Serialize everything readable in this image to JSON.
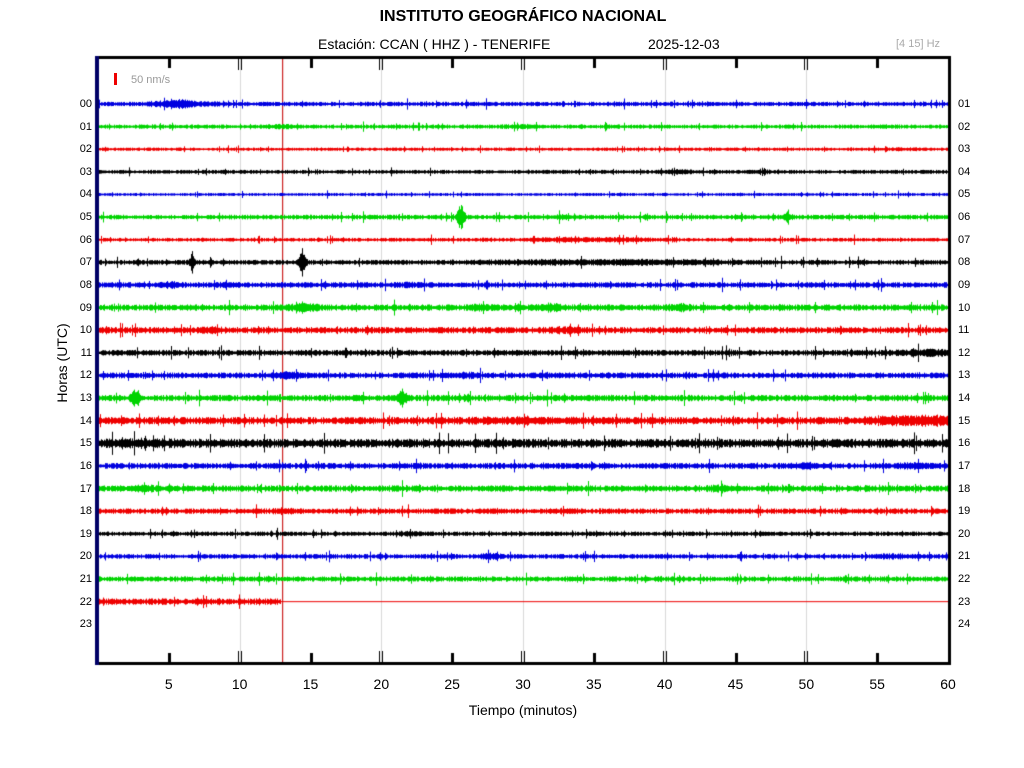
{
  "header": {
    "title": "INSTITUTO GEOGRÁFICO NACIONAL",
    "station_label": "Estación:  CCAN ( HHZ ) - TENERIFE",
    "date": "2025-12-03",
    "filter": "[4 15] Hz"
  },
  "scale": {
    "label": "50 nm/s"
  },
  "axes": {
    "x_title": "Tiempo (minutos)",
    "y_title": "Horas (UTC)"
  },
  "chart_data": {
    "type": "line",
    "subtype": "helicorder-seismogram",
    "title": "INSTITUTO GEOGRÁFICO NACIONAL",
    "subtitle": "Estación:  CCAN ( HHZ ) - TENERIFE  2025-12-03",
    "xlabel": "Tiempo (minutos)",
    "ylabel": "Horas (UTC)",
    "xlim": [
      0,
      60
    ],
    "x_tick_values": [
      5,
      10,
      15,
      20,
      25,
      30,
      35,
      40,
      45,
      50,
      55,
      60
    ],
    "x_tick_labels": [
      "5",
      "10",
      "15",
      "20",
      "25",
      "30",
      "35",
      "40",
      "45",
      "50",
      "55",
      "60"
    ],
    "grid_minutes": [
      10,
      20,
      30,
      40,
      50
    ],
    "grid_on": true,
    "left_hour_labels": [
      "00",
      "01",
      "02",
      "03",
      "04",
      "05",
      "06",
      "07",
      "08",
      "09",
      "10",
      "11",
      "12",
      "13",
      "14",
      "15",
      "16",
      "17",
      "18",
      "19",
      "20",
      "21",
      "22",
      "23"
    ],
    "right_hour_labels": [
      "01",
      "02",
      "03",
      "04",
      "05",
      "06",
      "07",
      "08",
      "09",
      "10",
      "11",
      "12",
      "13",
      "14",
      "15",
      "16",
      "17",
      "18",
      "19",
      "20",
      "21",
      "22",
      "23",
      "24"
    ],
    "amplitude_scale_nm_s": 50,
    "filter_band_hz": "[4 15]",
    "cursor_minute": 13,
    "colors": {
      "blue": "#0000e0",
      "green": "#00d400",
      "red": "#ee0000",
      "black": "#000000",
      "left_border": "#000066",
      "frame": "#000000",
      "grid": "#d8d8d8",
      "cursor": "#cc2222",
      "muted_text": "#999999"
    },
    "rows": [
      {
        "hour": "00",
        "color": "blue",
        "amp": 1.9,
        "end": 60,
        "events": [
          {
            "t": 5.9,
            "a": 3.0,
            "w": 0.8
          },
          {
            "t": 4.0,
            "a": 1.0,
            "w": 0.6
          },
          {
            "t": 8.0,
            "a": 0.8,
            "w": 0.4
          }
        ]
      },
      {
        "hour": "01",
        "color": "green",
        "amp": 1.8,
        "end": 60,
        "events": [
          {
            "t": 13,
            "a": 0.8,
            "w": 0.8
          },
          {
            "t": 30,
            "a": 0.6,
            "w": 1.0
          }
        ]
      },
      {
        "hour": "02",
        "color": "red",
        "amp": 1.4,
        "end": 60,
        "events": [
          {
            "t": 57,
            "a": 0.5,
            "w": 1.0
          }
        ]
      },
      {
        "hour": "03",
        "color": "black",
        "amp": 1.7,
        "end": 60,
        "events": [
          {
            "t": 41,
            "a": 0.9,
            "w": 0.7
          },
          {
            "t": 47,
            "a": 0.6,
            "w": 0.5
          }
        ]
      },
      {
        "hour": "04",
        "color": "blue",
        "amp": 1.3,
        "end": 60,
        "events": []
      },
      {
        "hour": "05",
        "color": "green",
        "amp": 2.0,
        "end": 60,
        "events": [
          {
            "t": 25.6,
            "a": 10,
            "w": 0.18
          },
          {
            "t": 48.6,
            "a": 2.2,
            "w": 0.25
          },
          {
            "t": 33,
            "a": 0.8,
            "w": 0.8
          }
        ]
      },
      {
        "hour": "06",
        "color": "red",
        "amp": 1.6,
        "end": 60,
        "events": [
          {
            "t": 33,
            "a": 1.0,
            "w": 2.0
          },
          {
            "t": 37,
            "a": 0.8,
            "w": 1.5
          }
        ]
      },
      {
        "hour": "07",
        "color": "black",
        "amp": 2.1,
        "end": 60,
        "events": [
          {
            "t": 6.6,
            "a": 5.5,
            "w": 0.12
          },
          {
            "t": 14.4,
            "a": 11,
            "w": 0.16
          },
          {
            "t": 32,
            "a": 1.0,
            "w": 4.0
          },
          {
            "t": 40,
            "a": 1.0,
            "w": 3.0
          }
        ]
      },
      {
        "hour": "08",
        "color": "blue",
        "amp": 2.4,
        "end": 60,
        "events": [
          {
            "t": 5,
            "a": 1.2,
            "w": 0.5
          },
          {
            "t": 9,
            "a": 1.0,
            "w": 0.4
          },
          {
            "t": 22,
            "a": 0.8,
            "w": 0.5
          }
        ]
      },
      {
        "hour": "09",
        "color": "green",
        "amp": 2.7,
        "end": 60,
        "events": [
          {
            "t": 14.5,
            "a": 2.2,
            "w": 0.7
          },
          {
            "t": 32,
            "a": 1.8,
            "w": 0.6
          },
          {
            "t": 41,
            "a": 1.6,
            "w": 0.5
          },
          {
            "t": 27,
            "a": 1.2,
            "w": 0.5
          }
        ]
      },
      {
        "hour": "10",
        "color": "red",
        "amp": 2.7,
        "end": 60,
        "events": [
          {
            "t": 8,
            "a": 1.0,
            "w": 0.6
          },
          {
            "t": 33,
            "a": 1.0,
            "w": 0.8
          }
        ]
      },
      {
        "hour": "11",
        "color": "black",
        "amp": 2.5,
        "end": 60,
        "events": [
          {
            "t": 58.5,
            "a": 1.5,
            "w": 1.2
          }
        ]
      },
      {
        "hour": "12",
        "color": "blue",
        "amp": 2.5,
        "end": 60,
        "events": [
          {
            "t": 13.5,
            "a": 1.5,
            "w": 0.6
          },
          {
            "t": 26,
            "a": 1.0,
            "w": 0.5
          }
        ]
      },
      {
        "hour": "13",
        "color": "green",
        "amp": 2.7,
        "end": 60,
        "events": [
          {
            "t": 2.6,
            "a": 5.5,
            "w": 0.2
          },
          {
            "t": 21.4,
            "a": 6.5,
            "w": 0.18
          }
        ]
      },
      {
        "hour": "14",
        "color": "red",
        "amp": 3.1,
        "end": 60,
        "events": [
          {
            "t": 58,
            "a": 2.5,
            "w": 2.5
          },
          {
            "t": 30,
            "a": 0.8,
            "w": 3.0
          }
        ]
      },
      {
        "hour": "15",
        "color": "black",
        "amp": 3.8,
        "end": 60,
        "events": [
          {
            "t": 3,
            "a": 0.8,
            "w": 2.0
          }
        ]
      },
      {
        "hour": "16",
        "color": "blue",
        "amp": 2.5,
        "end": 60,
        "events": [
          {
            "t": 50,
            "a": 1.2,
            "w": 0.8
          },
          {
            "t": 57.5,
            "a": 1.0,
            "w": 0.8
          }
        ]
      },
      {
        "hour": "17",
        "color": "green",
        "amp": 2.7,
        "end": 60,
        "events": [
          {
            "t": 3,
            "a": 1.0,
            "w": 0.8
          },
          {
            "t": 44,
            "a": 0.8,
            "w": 0.8
          }
        ]
      },
      {
        "hour": "18",
        "color": "red",
        "amp": 2.3,
        "end": 60,
        "events": [
          {
            "t": 13,
            "a": 0.8,
            "w": 0.6
          },
          {
            "t": 33,
            "a": 0.8,
            "w": 0.6
          }
        ]
      },
      {
        "hour": "19",
        "color": "black",
        "amp": 1.9,
        "end": 60,
        "events": [
          {
            "t": 22,
            "a": 0.7,
            "w": 0.5
          }
        ]
      },
      {
        "hour": "20",
        "color": "blue",
        "amp": 2.0,
        "end": 60,
        "events": [
          {
            "t": 27.6,
            "a": 1.8,
            "w": 0.5
          },
          {
            "t": 56,
            "a": 1.0,
            "w": 0.8
          }
        ]
      },
      {
        "hour": "21",
        "color": "green",
        "amp": 2.3,
        "end": 60,
        "events": []
      },
      {
        "hour": "22",
        "color": "red",
        "amp": 2.7,
        "end": 12.9,
        "flat_after": true,
        "events": []
      },
      {
        "hour": "23",
        "color": "black",
        "amp": 0,
        "end": 0,
        "events": []
      }
    ]
  }
}
